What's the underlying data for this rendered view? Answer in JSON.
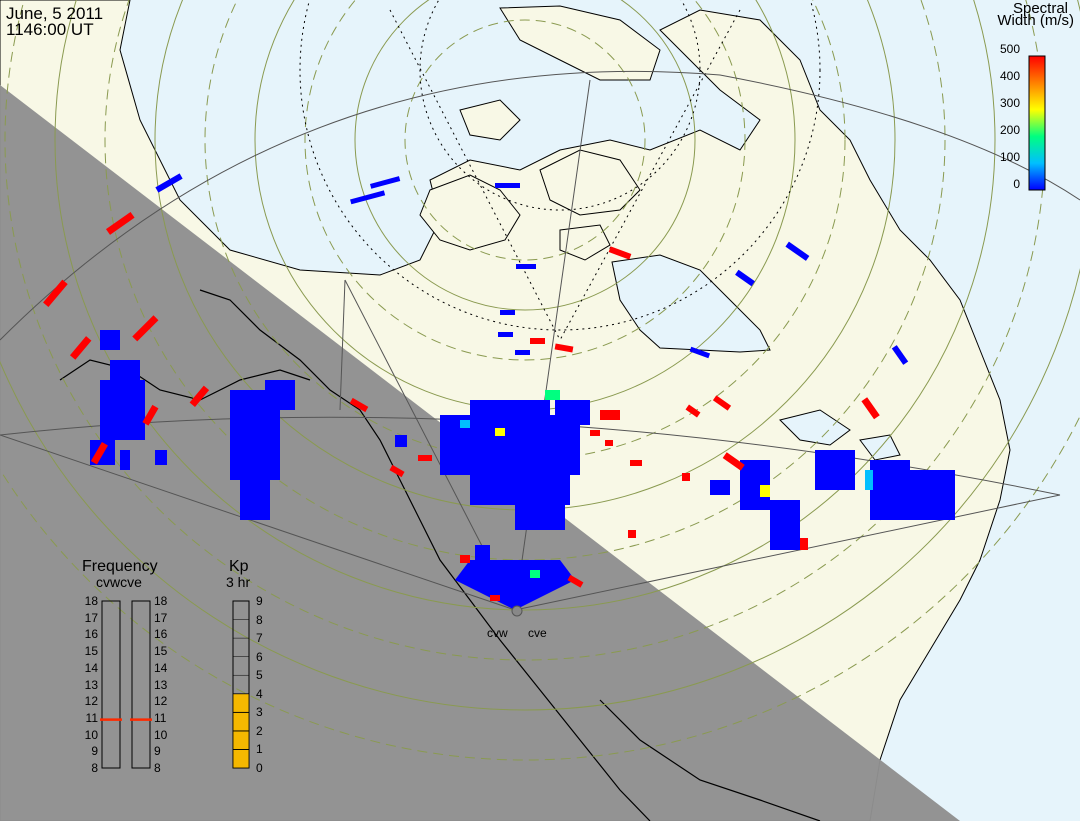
{
  "header": {
    "date": "June, 5 2011",
    "time": "1146:00 UT"
  },
  "colorbar": {
    "title_line1": "Spectral",
    "title_line2": "Width (m/s)",
    "ticks": [
      "500",
      "400",
      "300",
      "200",
      "100",
      "0"
    ],
    "range": [
      0,
      500
    ],
    "colors": [
      "#0000ff",
      "#00bfff",
      "#00ff80",
      "#ffff00",
      "#ff8000",
      "#ff0000"
    ]
  },
  "frequency_panel": {
    "title": "Frequency",
    "radars": "cvwcve",
    "ticks": [
      "18",
      "17",
      "16",
      "15",
      "14",
      "13",
      "12",
      "11",
      "10",
      "9",
      "8"
    ],
    "cvw_value": 10.9,
    "cve_value": 10.9,
    "marker_color": "#ff2a00"
  },
  "kp_panel": {
    "title": "Kp",
    "subtitle": "3 hr",
    "ticks": [
      "9",
      "8",
      "7",
      "6",
      "5",
      "4",
      "3",
      "2",
      "1",
      "0"
    ],
    "value": 4,
    "fill_color": "#f5b800"
  },
  "stations": {
    "west": "cvw",
    "east": "cve"
  },
  "map_colors": {
    "day": "#f8f8e6",
    "ocean": "#e6f4fb",
    "night": "#909090",
    "coast": "#000000"
  }
}
